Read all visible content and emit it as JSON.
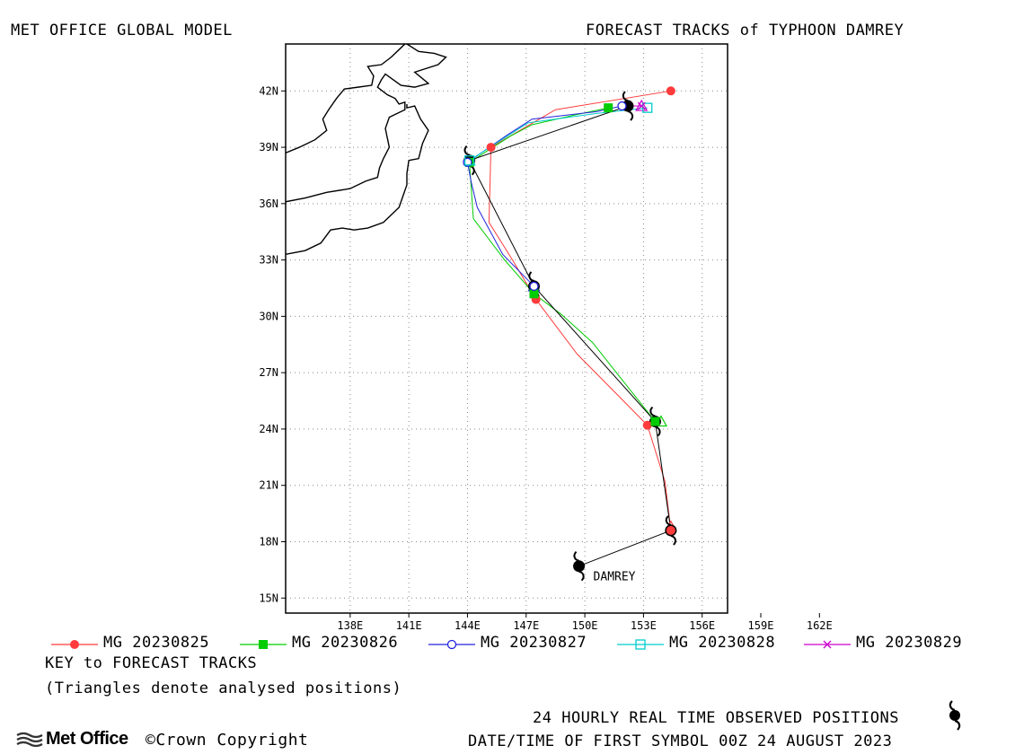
{
  "header": {
    "left_title": "MET OFFICE GLOBAL MODEL",
    "right_title": "FORECAST TRACKS of TYPHOON DAMREY"
  },
  "map": {
    "lon_range": [
      134.7,
      157.3
    ],
    "lat_range": [
      14.2,
      44.5
    ],
    "lon_ticks": [
      138,
      141,
      144,
      147,
      150,
      153,
      156,
      159,
      162
    ],
    "lon_tick_labels": [
      "138E",
      "141E",
      "144E",
      "147E",
      "150E",
      "153E",
      "156E",
      "159E",
      "162E"
    ],
    "lat_ticks": [
      15,
      18,
      21,
      24,
      27,
      30,
      33,
      36,
      39,
      42
    ],
    "lat_tick_labels": [
      "15N",
      "18N",
      "21N",
      "24N",
      "27N",
      "30N",
      "33N",
      "36N",
      "39N",
      "42N"
    ],
    "grid": "dotted",
    "storm_label": "DAMREY"
  },
  "chart_data": {
    "type": "map",
    "observed_track": {
      "name": "24 HOURLY REAL TIME OBSERVED POSITIONS",
      "color": "#000000",
      "positions": [
        [
          149.7,
          16.7
        ],
        [
          154.4,
          18.6
        ],
        [
          153.6,
          24.4
        ],
        [
          147.4,
          31.6
        ],
        [
          144.1,
          38.3
        ],
        [
          152.2,
          41.2
        ]
      ]
    },
    "series": [
      {
        "name": "MG 20230825",
        "color": "#ff3b3b",
        "marker": "filled-circle",
        "track": [
          [
            154.4,
            18.6
          ],
          [
            154.1,
            21.2
          ],
          [
            153.2,
            24.2
          ],
          [
            151.5,
            26.0
          ],
          [
            149.6,
            28.0
          ],
          [
            147.5,
            30.9
          ],
          [
            146.3,
            33.0
          ],
          [
            145.1,
            35.0
          ],
          [
            145.2,
            39.0
          ],
          [
            148.5,
            41.0
          ],
          [
            154.4,
            42.0
          ]
        ],
        "points": [
          [
            154.4,
            18.6
          ],
          [
            153.2,
            24.2
          ],
          [
            147.5,
            30.9
          ],
          [
            145.2,
            39.0
          ],
          [
            154.4,
            42.0
          ]
        ]
      },
      {
        "name": "MG 20230826",
        "color": "#00cc00",
        "marker": "filled-square",
        "track": [
          [
            153.6,
            24.4
          ],
          [
            152.0,
            26.5
          ],
          [
            150.4,
            28.6
          ],
          [
            148.8,
            30.1
          ],
          [
            147.4,
            31.2
          ],
          [
            145.9,
            33.0
          ],
          [
            144.3,
            35.2
          ],
          [
            144.1,
            38.2
          ],
          [
            146.2,
            39.6
          ],
          [
            147.3,
            40.2
          ],
          [
            149.4,
            40.7
          ],
          [
            151.2,
            41.1
          ]
        ],
        "points": [
          [
            153.6,
            24.4
          ],
          [
            147.4,
            31.2
          ],
          [
            144.1,
            38.2
          ],
          [
            151.2,
            41.1
          ]
        ]
      },
      {
        "name": "MG 20230827",
        "color": "#2222dd",
        "marker": "open-circle",
        "track": [
          [
            147.4,
            31.6
          ],
          [
            145.8,
            33.3
          ],
          [
            144.5,
            35.8
          ],
          [
            144.2,
            37.1
          ],
          [
            144.0,
            38.2
          ],
          [
            146.1,
            39.7
          ],
          [
            147.3,
            40.5
          ],
          [
            150.6,
            40.9
          ],
          [
            151.9,
            41.2
          ]
        ],
        "points": [
          [
            147.4,
            31.6
          ],
          [
            144.0,
            38.2
          ],
          [
            151.9,
            41.2
          ]
        ]
      },
      {
        "name": "MG 20230828",
        "color": "#00cccc",
        "marker": "open-square",
        "track": [
          [
            144.1,
            38.3
          ],
          [
            147.1,
            40.3
          ],
          [
            150.6,
            40.8
          ],
          [
            153.2,
            41.1
          ]
        ],
        "points": [
          [
            144.1,
            38.3
          ],
          [
            153.2,
            41.1
          ]
        ]
      },
      {
        "name": "MG 20230829",
        "color": "#cc00cc",
        "marker": "cross",
        "track": [
          [
            152.2,
            41.2
          ],
          [
            152.9,
            41.2
          ]
        ],
        "points": [
          [
            152.9,
            41.2
          ]
        ]
      }
    ],
    "analysed_positions": [
      [
        154.4,
        18.8
      ],
      [
        153.9,
        24.4
      ],
      [
        147.4,
        31.6
      ],
      [
        144.1,
        38.3
      ],
      [
        152.9,
        41.2
      ]
    ],
    "coastline": [
      [
        [
          134.7,
          38.7
        ],
        [
          135.4,
          39.0
        ],
        [
          136.2,
          39.4
        ],
        [
          136.8,
          39.9
        ],
        [
          136.6,
          40.5
        ],
        [
          136.9,
          41.0
        ],
        [
          137.3,
          41.6
        ],
        [
          137.7,
          42.1
        ],
        [
          138.4,
          42.2
        ],
        [
          139.1,
          42.3
        ],
        [
          139.2,
          42.8
        ],
        [
          138.9,
          43.3
        ],
        [
          139.6,
          43.4
        ],
        [
          140.1,
          43.8
        ],
        [
          140.6,
          44.3
        ],
        [
          140.8,
          44.5
        ]
      ],
      [
        [
          140.9,
          44.5
        ],
        [
          141.5,
          44.1
        ],
        [
          142.3,
          44.0
        ],
        [
          142.9,
          43.8
        ],
        [
          142.5,
          43.4
        ],
        [
          141.3,
          43.0
        ],
        [
          142.0,
          42.4
        ],
        [
          141.3,
          42.2
        ],
        [
          140.6,
          42.3
        ],
        [
          140.2,
          42.6
        ],
        [
          139.8,
          42.9
        ],
        [
          139.6,
          42.6
        ],
        [
          139.4,
          42.2
        ],
        [
          139.9,
          41.8
        ],
        [
          140.3,
          41.6
        ],
        [
          140.5,
          41.3
        ],
        [
          140.8,
          41.4
        ],
        [
          140.8,
          41.0
        ],
        [
          140.0,
          40.6
        ],
        [
          139.8,
          40.0
        ],
        [
          139.9,
          39.5
        ],
        [
          140.0,
          39.0
        ],
        [
          139.7,
          38.4
        ],
        [
          139.5,
          37.9
        ],
        [
          139.4,
          37.4
        ],
        [
          138.8,
          37.2
        ],
        [
          138.0,
          36.8
        ],
        [
          136.8,
          36.6
        ],
        [
          135.7,
          36.3
        ],
        [
          134.7,
          36.1
        ]
      ],
      [
        [
          134.7,
          33.3
        ],
        [
          135.7,
          33.5
        ],
        [
          136.5,
          33.9
        ],
        [
          137.0,
          34.6
        ],
        [
          137.6,
          34.7
        ],
        [
          138.2,
          34.6
        ],
        [
          138.9,
          34.7
        ],
        [
          139.7,
          35.0
        ],
        [
          140.1,
          35.4
        ],
        [
          140.5,
          35.8
        ],
        [
          140.7,
          36.4
        ],
        [
          140.9,
          37.0
        ],
        [
          140.9,
          37.6
        ],
        [
          141.0,
          38.3
        ],
        [
          141.5,
          38.4
        ],
        [
          141.7,
          39.2
        ],
        [
          142.0,
          39.9
        ],
        [
          141.6,
          40.5
        ],
        [
          141.3,
          41.2
        ],
        [
          140.9,
          41.1
        ],
        [
          140.9,
          41.3
        ]
      ]
    ]
  },
  "legend": {
    "key_title": "KEY to FORECAST TRACKS",
    "key_note": "(Triangles denote analysed positions)"
  },
  "footer": {
    "logo_text": "Met Office",
    "copyright": "Crown Copyright",
    "copyright_symbol": "©",
    "observed_label": "24 HOURLY REAL TIME OBSERVED POSITIONS",
    "datetime_label": "DATE/TIME OF FIRST SYMBOL 00Z 24 AUGUST 2023"
  }
}
